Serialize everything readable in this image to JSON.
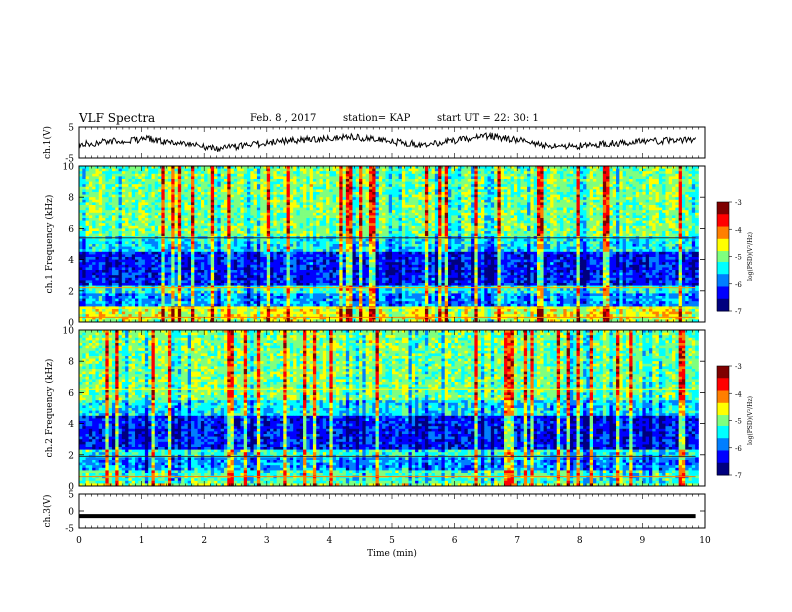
{
  "header": {
    "title": "VLF Spectra",
    "date": "Feb. 8 , 2017",
    "station": "station= KAP",
    "start": "start UT = 22: 30: 1"
  },
  "colors": {
    "colormap": [
      "#00007f",
      "#0000ff",
      "#007fff",
      "#00ffff",
      "#7fff7f",
      "#ffff00",
      "#ff7f00",
      "#ff0000",
      "#7f0000"
    ],
    "trace": "#000000"
  },
  "chart_data": [
    {
      "type": "line",
      "panel": "ch1-waveform",
      "ylabel": "ch.1(V)",
      "ylim": [
        -5,
        5
      ],
      "yticks": [
        "5",
        "-5"
      ],
      "xlim": [
        0,
        9.85
      ],
      "series": [
        {
          "values": [
            -0.5,
            1.2,
            -2.0,
            0.5,
            1.8,
            -0.8,
            2.2,
            -1.5,
            0.0,
            1.0
          ]
        }
      ]
    },
    {
      "type": "heatmap",
      "panel": "ch1-spectrogram",
      "ylabel": "ch.1 Frequency (kHz)",
      "ylim": [
        0,
        10
      ],
      "yticks": [
        "0",
        "2",
        "4",
        "6",
        "8",
        "10"
      ],
      "colorbar": {
        "label": "log(PSD)(V²/Hz)",
        "range": [
          -7,
          -3
        ],
        "ticks": [
          "-3",
          "-4",
          "-5",
          "-6",
          "-7"
        ]
      }
    },
    {
      "type": "heatmap",
      "panel": "ch2-spectrogram",
      "ylabel": "ch.2 Frequency (kHz)",
      "ylim": [
        0,
        10
      ],
      "yticks": [
        "0",
        "2",
        "4",
        "6",
        "8",
        "10"
      ],
      "colorbar": {
        "label": "log(PSD)(V²/Hz)",
        "range": [
          -7,
          -3
        ],
        "ticks": [
          "-3",
          "-4",
          "-5",
          "-6",
          "-7"
        ]
      }
    },
    {
      "type": "line",
      "panel": "ch3-waveform",
      "ylabel": "ch.3(V)",
      "ylim": [
        -5,
        5
      ],
      "yticks": [
        "5",
        "0",
        "-5"
      ],
      "xlim": [
        0,
        9.85
      ],
      "series": [
        {
          "values": [
            -1.5,
            -1.5
          ]
        }
      ]
    }
  ],
  "xaxis": {
    "label": "Time (min)",
    "range": [
      0,
      10
    ],
    "ticks": [
      "0",
      "1",
      "2",
      "3",
      "4",
      "5",
      "6",
      "7",
      "8",
      "9",
      "10"
    ]
  }
}
